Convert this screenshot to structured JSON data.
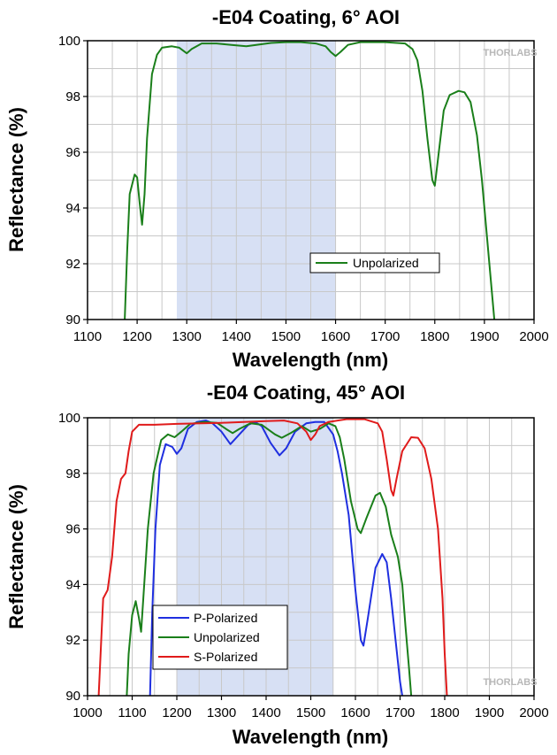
{
  "chart_data": [
    {
      "type": "line",
      "title": "-E04 Coating, 6° AOI",
      "xlabel": "Wavelength (nm)",
      "ylabel": "Reflectance (%)",
      "xlim": [
        1100,
        2000
      ],
      "ylim": [
        90,
        100
      ],
      "xticks": [
        1100,
        1200,
        1300,
        1400,
        1500,
        1600,
        1700,
        1800,
        1900,
        2000
      ],
      "yticks": [
        90,
        92,
        94,
        96,
        98,
        100
      ],
      "grid": true,
      "highlight_band": [
        1280,
        1600
      ],
      "highlight_color": "#d7e0f4",
      "legend_position": "center-right",
      "watermark": "THORLABS",
      "series": [
        {
          "name": "Unpolarized",
          "color": "#1a7f1a",
          "points": [
            [
              1175,
              90
            ],
            [
              1180,
              92.5
            ],
            [
              1185,
              94.5
            ],
            [
              1195,
              95.2
            ],
            [
              1200,
              95.1
            ],
            [
              1205,
              94.2
            ],
            [
              1210,
              93.4
            ],
            [
              1215,
              94.5
            ],
            [
              1220,
              96.5
            ],
            [
              1230,
              98.8
            ],
            [
              1240,
              99.5
            ],
            [
              1250,
              99.75
            ],
            [
              1270,
              99.8
            ],
            [
              1285,
              99.75
            ],
            [
              1300,
              99.55
            ],
            [
              1310,
              99.7
            ],
            [
              1330,
              99.9
            ],
            [
              1360,
              99.9
            ],
            [
              1390,
              99.85
            ],
            [
              1420,
              99.8
            ],
            [
              1440,
              99.85
            ],
            [
              1470,
              99.92
            ],
            [
              1500,
              99.95
            ],
            [
              1530,
              99.95
            ],
            [
              1560,
              99.9
            ],
            [
              1580,
              99.8
            ],
            [
              1590,
              99.6
            ],
            [
              1600,
              99.45
            ],
            [
              1610,
              99.6
            ],
            [
              1625,
              99.85
            ],
            [
              1650,
              99.95
            ],
            [
              1700,
              99.95
            ],
            [
              1740,
              99.9
            ],
            [
              1755,
              99.7
            ],
            [
              1765,
              99.3
            ],
            [
              1775,
              98.2
            ],
            [
              1785,
              96.5
            ],
            [
              1795,
              95.0
            ],
            [
              1800,
              94.8
            ],
            [
              1808,
              96.0
            ],
            [
              1818,
              97.5
            ],
            [
              1830,
              98.05
            ],
            [
              1848,
              98.2
            ],
            [
              1860,
              98.15
            ],
            [
              1872,
              97.8
            ],
            [
              1885,
              96.6
            ],
            [
              1895,
              95.0
            ],
            [
              1905,
              93.0
            ],
            [
              1915,
              91.0
            ],
            [
              1920,
              90
            ]
          ]
        }
      ]
    },
    {
      "type": "line",
      "title": "-E04 Coating, 45° AOI",
      "xlabel": "Wavelength (nm)",
      "ylabel": "Reflectance (%)",
      "xlim": [
        1000,
        2000
      ],
      "ylim": [
        90,
        100
      ],
      "xticks": [
        1000,
        1100,
        1200,
        1300,
        1400,
        1500,
        1600,
        1700,
        1800,
        1900,
        2000
      ],
      "yticks": [
        90,
        92,
        94,
        96,
        98,
        100
      ],
      "grid": true,
      "highlight_band": [
        1200,
        1550
      ],
      "highlight_color": "#d7e0f4",
      "legend_position": "bottom-left",
      "watermark": "THORLABS",
      "series": [
        {
          "name": "P-Polarized",
          "color": "#1f2fe0",
          "points": [
            [
              1140,
              90
            ],
            [
              1145,
              93
            ],
            [
              1152,
              96
            ],
            [
              1162,
              98.3
            ],
            [
              1175,
              99.05
            ],
            [
              1190,
              98.95
            ],
            [
              1200,
              98.7
            ],
            [
              1210,
              98.9
            ],
            [
              1225,
              99.6
            ],
            [
              1245,
              99.85
            ],
            [
              1265,
              99.9
            ],
            [
              1280,
              99.8
            ],
            [
              1300,
              99.5
            ],
            [
              1320,
              99.05
            ],
            [
              1340,
              99.4
            ],
            [
              1360,
              99.75
            ],
            [
              1375,
              99.85
            ],
            [
              1390,
              99.7
            ],
            [
              1410,
              99.1
            ],
            [
              1430,
              98.65
            ],
            [
              1445,
              98.9
            ],
            [
              1465,
              99.5
            ],
            [
              1490,
              99.8
            ],
            [
              1510,
              99.85
            ],
            [
              1530,
              99.85
            ],
            [
              1550,
              99.4
            ],
            [
              1560,
              98.8
            ],
            [
              1570,
              98.0
            ],
            [
              1585,
              96.5
            ],
            [
              1600,
              93.8
            ],
            [
              1612,
              92.0
            ],
            [
              1618,
              91.8
            ],
            [
              1628,
              92.8
            ],
            [
              1645,
              94.6
            ],
            [
              1660,
              95.1
            ],
            [
              1670,
              94.8
            ],
            [
              1680,
              93.5
            ],
            [
              1690,
              92.0
            ],
            [
              1700,
              90.5
            ],
            [
              1705,
              90
            ]
          ]
        },
        {
          "name": "Unpolarized",
          "color": "#1a7f1a",
          "points": [
            [
              1088,
              90
            ],
            [
              1092,
              91.5
            ],
            [
              1100,
              92.9
            ],
            [
              1108,
              93.4
            ],
            [
              1115,
              92.8
            ],
            [
              1120,
              92.3
            ],
            [
              1125,
              93.5
            ],
            [
              1135,
              96
            ],
            [
              1148,
              98.0
            ],
            [
              1165,
              99.2
            ],
            [
              1180,
              99.4
            ],
            [
              1195,
              99.3
            ],
            [
              1210,
              99.5
            ],
            [
              1230,
              99.78
            ],
            [
              1260,
              99.85
            ],
            [
              1290,
              99.82
            ],
            [
              1310,
              99.6
            ],
            [
              1325,
              99.45
            ],
            [
              1340,
              99.6
            ],
            [
              1365,
              99.8
            ],
            [
              1390,
              99.75
            ],
            [
              1420,
              99.4
            ],
            [
              1435,
              99.28
            ],
            [
              1455,
              99.45
            ],
            [
              1480,
              99.7
            ],
            [
              1500,
              99.5
            ],
            [
              1520,
              99.6
            ],
            [
              1540,
              99.8
            ],
            [
              1555,
              99.7
            ],
            [
              1565,
              99.3
            ],
            [
              1575,
              98.5
            ],
            [
              1590,
              97.0
            ],
            [
              1605,
              96.0
            ],
            [
              1612,
              95.85
            ],
            [
              1625,
              96.4
            ],
            [
              1645,
              97.2
            ],
            [
              1655,
              97.3
            ],
            [
              1668,
              96.8
            ],
            [
              1680,
              95.8
            ],
            [
              1695,
              95.0
            ],
            [
              1705,
              94.0
            ],
            [
              1712,
              92.5
            ],
            [
              1720,
              91.0
            ],
            [
              1725,
              90
            ]
          ]
        },
        {
          "name": "S-Polarized",
          "color": "#e01b1b",
          "points": [
            [
              1025,
              90
            ],
            [
              1030,
              91.8
            ],
            [
              1035,
              93.5
            ],
            [
              1045,
              93.8
            ],
            [
              1055,
              95.0
            ],
            [
              1065,
              97.0
            ],
            [
              1075,
              97.8
            ],
            [
              1085,
              98.0
            ],
            [
              1092,
              98.8
            ],
            [
              1100,
              99.5
            ],
            [
              1115,
              99.75
            ],
            [
              1150,
              99.75
            ],
            [
              1200,
              99.78
            ],
            [
              1300,
              99.82
            ],
            [
              1400,
              99.88
            ],
            [
              1440,
              99.9
            ],
            [
              1470,
              99.8
            ],
            [
              1490,
              99.5
            ],
            [
              1500,
              99.2
            ],
            [
              1510,
              99.4
            ],
            [
              1520,
              99.7
            ],
            [
              1540,
              99.85
            ],
            [
              1580,
              99.95
            ],
            [
              1620,
              99.95
            ],
            [
              1650,
              99.8
            ],
            [
              1660,
              99.5
            ],
            [
              1670,
              98.5
            ],
            [
              1680,
              97.4
            ],
            [
              1685,
              97.2
            ],
            [
              1692,
              97.8
            ],
            [
              1705,
              98.8
            ],
            [
              1725,
              99.3
            ],
            [
              1740,
              99.28
            ],
            [
              1755,
              98.9
            ],
            [
              1770,
              97.8
            ],
            [
              1785,
              96.0
            ],
            [
              1795,
              93.5
            ],
            [
              1800,
              91.5
            ],
            [
              1805,
              90
            ]
          ]
        }
      ]
    }
  ]
}
